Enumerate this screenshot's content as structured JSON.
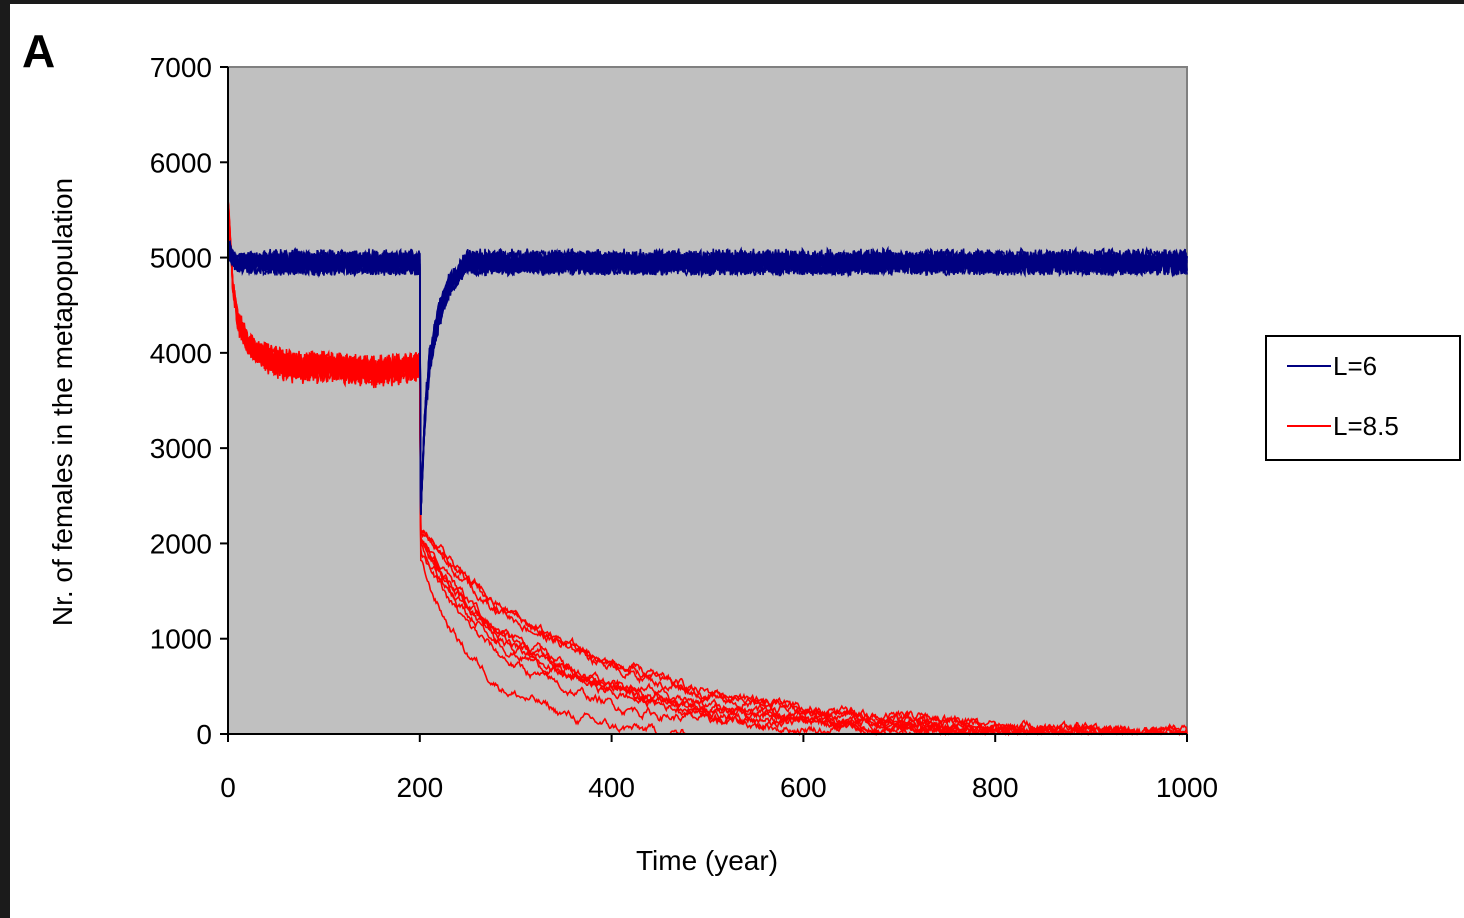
{
  "panel_label": "A",
  "chart_data": {
    "type": "line",
    "xlabel": "Time (year)",
    "ylabel": "Nr. of females in the metapopulation",
    "xlim": [
      0,
      1000
    ],
    "ylim": [
      0,
      7000
    ],
    "xticks": [
      0,
      200,
      400,
      600,
      800,
      1000
    ],
    "yticks": [
      0,
      1000,
      2000,
      3000,
      4000,
      5000,
      6000,
      7000
    ],
    "plot_background": "#c0c0c0",
    "grid": false,
    "legend_position": "right",
    "series": [
      {
        "name": "L=6",
        "color": "#000080",
        "runs": 10,
        "x": [
          0,
          5,
          10,
          50,
          100,
          150,
          199,
          200,
          201,
          205,
          210,
          220,
          230,
          240,
          250,
          260,
          300,
          400,
          500,
          600,
          700,
          800,
          900,
          1000
        ],
        "y": [
          5100,
          5000,
          4950,
          4950,
          4950,
          4950,
          4950,
          4950,
          2300,
          3300,
          3900,
          4400,
          4700,
          4850,
          4950,
          4950,
          4950,
          4950,
          4950,
          4950,
          4950,
          4950,
          4950,
          4950
        ],
        "y_spread": [
          300,
          200,
          200,
          250,
          250,
          250,
          250,
          250,
          0,
          300,
          300,
          300,
          250,
          250,
          250,
          250,
          250,
          250,
          250,
          250,
          250,
          250,
          250,
          250
        ]
      },
      {
        "name": "L=8.5",
        "color": "#ff0000",
        "runs": 10,
        "x": [
          0,
          5,
          10,
          20,
          30,
          50,
          70,
          100,
          150,
          199,
          200,
          201,
          210,
          230,
          250,
          280,
          300,
          350,
          400,
          450,
          500,
          600,
          700,
          800,
          900,
          1000
        ],
        "y": [
          5600,
          4700,
          4350,
          4100,
          4000,
          3900,
          3850,
          3850,
          3800,
          3850,
          3850,
          2000,
          1800,
          1500,
          1250,
          980,
          850,
          600,
          420,
          300,
          210,
          110,
          60,
          25,
          5,
          0
        ],
        "y_spread": [
          100,
          200,
          250,
          250,
          250,
          300,
          300,
          300,
          300,
          300,
          300,
          200,
          300,
          400,
          450,
          480,
          480,
          450,
          400,
          320,
          280,
          160,
          120,
          60,
          20,
          0
        ]
      }
    ]
  }
}
